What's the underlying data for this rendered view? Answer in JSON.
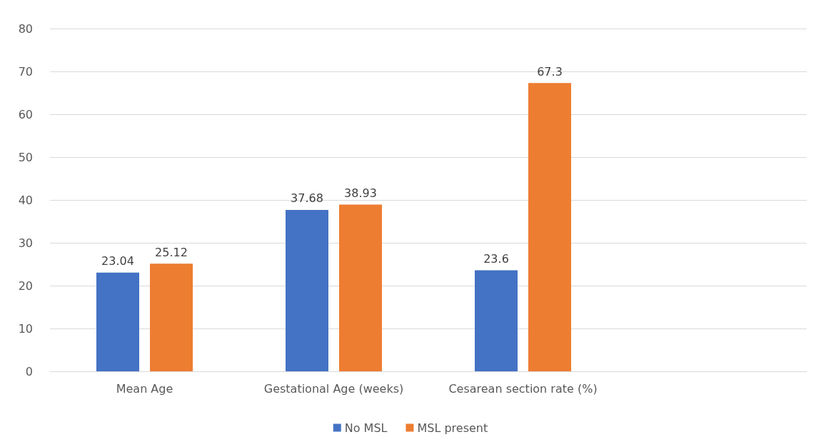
{
  "chart_data": {
    "type": "bar",
    "categories": [
      "Mean Age",
      "Gestational Age (weeks)",
      "Cesarean section rate (%)",
      null
    ],
    "series": [
      {
        "name": "No MSL",
        "color": "#4472c4",
        "values": [
          23.04,
          37.68,
          23.6,
          null
        ]
      },
      {
        "name": "MSL present",
        "color": "#ed7d31",
        "values": [
          25.12,
          38.93,
          67.3,
          null
        ]
      }
    ],
    "ylim": [
      0,
      80
    ],
    "yticks": [
      0,
      10,
      20,
      30,
      40,
      50,
      60,
      70,
      80
    ],
    "grid": "y",
    "legend": "bottom",
    "data_labels": true
  }
}
